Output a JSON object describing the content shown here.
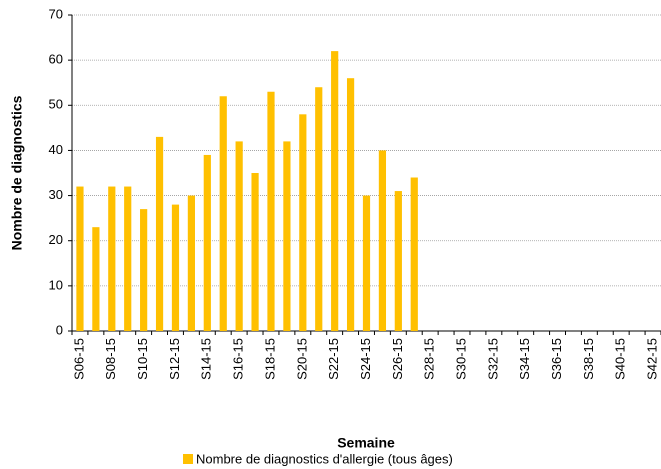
{
  "chart_data": {
    "type": "bar",
    "y_label": "Nombre de diagnostics",
    "x_label": "Semaine",
    "categories": [
      "S06-15",
      null,
      "S08-15",
      null,
      "S10-15",
      null,
      "S12-15",
      null,
      "S14-15",
      null,
      "S16-15",
      null,
      "S18-15",
      null,
      "S20-15",
      null,
      "S22-15",
      null,
      "S24-15",
      null,
      "S26-15",
      null,
      "S28-15",
      null,
      "S30-15",
      null,
      "S32-15",
      null,
      "S34-15",
      null,
      "S36-15",
      null,
      "S38-15",
      null,
      "S40-15",
      null,
      "S42-15"
    ],
    "series": [
      {
        "name": "Nombre de diagnostics d'allergie (tous âges)",
        "color": "#ffc000",
        "values": [
          32,
          23,
          32,
          32,
          27,
          43,
          28,
          30,
          39,
          52,
          42,
          35,
          53,
          42,
          48,
          54,
          62,
          56,
          30,
          40,
          31,
          34,
          null,
          null,
          null,
          null,
          null,
          null,
          null,
          null,
          null,
          null,
          null,
          null,
          null,
          null,
          null
        ]
      }
    ],
    "ylim": [
      0,
      70
    ],
    "yticks": [
      0,
      10,
      20,
      30,
      40,
      50,
      60,
      70
    ],
    "grid": true,
    "legend": "bottom"
  }
}
